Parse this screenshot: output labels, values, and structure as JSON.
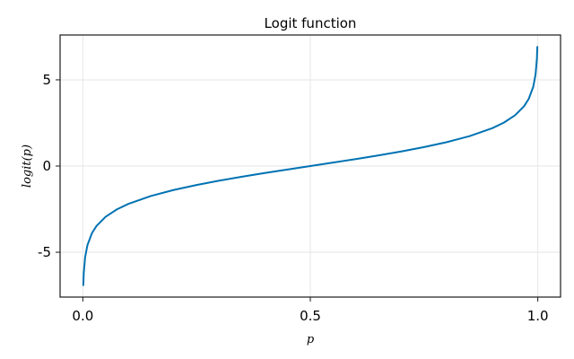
{
  "chart_data": {
    "type": "line",
    "title": "Logit function",
    "xlabel": "p",
    "ylabel": "logit(p)",
    "xlim": [
      -0.05,
      1.05
    ],
    "ylim": [
      -7.6,
      7.6
    ],
    "xticks": [
      0.0,
      0.5,
      1.0
    ],
    "xtick_labels": [
      "0.0",
      "0.5",
      "1.0"
    ],
    "yticks": [
      -5,
      0,
      5
    ],
    "ytick_labels": [
      "-5",
      "0",
      "5"
    ],
    "grid": true,
    "legend": "none",
    "series": [
      {
        "color": "#0072b2",
        "x": [
          0.001,
          0.002,
          0.005,
          0.01,
          0.02,
          0.03,
          0.05,
          0.075,
          0.1,
          0.15,
          0.2,
          0.25,
          0.3,
          0.35,
          0.4,
          0.45,
          0.5,
          0.55,
          0.6,
          0.65,
          0.7,
          0.75,
          0.8,
          0.85,
          0.9,
          0.925,
          0.95,
          0.97,
          0.98,
          0.99,
          0.995,
          0.998,
          0.999
        ],
        "y": [
          -6.907,
          -6.213,
          -5.293,
          -4.595,
          -3.892,
          -3.476,
          -2.944,
          -2.512,
          -2.197,
          -1.735,
          -1.386,
          -1.099,
          -0.847,
          -0.619,
          -0.405,
          -0.2,
          0.0,
          0.2,
          0.405,
          0.619,
          0.847,
          1.099,
          1.386,
          1.735,
          2.197,
          2.512,
          2.944,
          3.476,
          3.892,
          4.595,
          5.293,
          6.213,
          6.907
        ]
      }
    ]
  }
}
